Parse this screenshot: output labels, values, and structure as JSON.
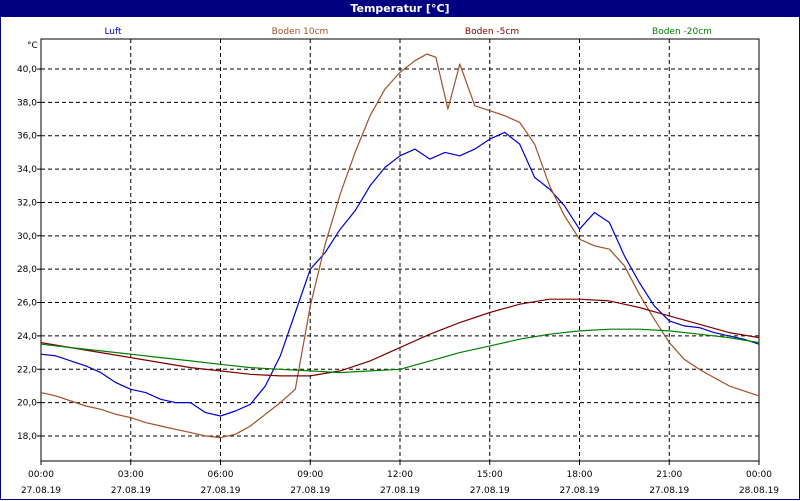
{
  "chart_data": {
    "type": "line",
    "title": "Temperatur [°C]",
    "ylabel": "°C",
    "ylim": [
      16.5,
      41.8
    ],
    "xlim": [
      0,
      24
    ],
    "grid": true,
    "legend_position": "top",
    "y_ticks": [
      "18,0",
      "20,0",
      "22,0",
      "24,0",
      "26,0",
      "28,0",
      "30,0",
      "32,0",
      "34,0",
      "36,0",
      "38,0",
      "40,0"
    ],
    "y_tick_values": [
      18,
      20,
      22,
      24,
      26,
      28,
      30,
      32,
      34,
      36,
      38,
      40
    ],
    "x_ticks": [
      {
        "time": "00:00",
        "date": "27.08.19",
        "hour": 0
      },
      {
        "time": "03:00",
        "date": "27.08.19",
        "hour": 3
      },
      {
        "time": "06:00",
        "date": "27.08.19",
        "hour": 6
      },
      {
        "time": "09:00",
        "date": "27.08.19",
        "hour": 9
      },
      {
        "time": "12:00",
        "date": "27.08.19",
        "hour": 12
      },
      {
        "time": "15:00",
        "date": "27.08.19",
        "hour": 15
      },
      {
        "time": "18:00",
        "date": "27.08.19",
        "hour": 18
      },
      {
        "time": "21:00",
        "date": "27.08.19",
        "hour": 21
      },
      {
        "time": "00:00",
        "date": "28.08.19",
        "hour": 24
      }
    ],
    "series": [
      {
        "name": "Luft",
        "color": "#0000cc",
        "x": [
          0,
          0.5,
          1,
          1.5,
          2,
          2.5,
          3,
          3.5,
          4,
          4.5,
          5,
          5.5,
          6,
          6.5,
          7,
          7.5,
          8,
          8.5,
          9,
          9.5,
          10,
          10.5,
          11,
          11.5,
          12,
          12.5,
          13,
          13.5,
          14,
          14.5,
          15,
          15.5,
          16,
          16.5,
          17,
          17.5,
          18,
          18.5,
          19,
          19.5,
          20,
          20.5,
          21,
          21.5,
          22,
          22.5,
          23,
          23.5,
          24
        ],
        "y": [
          22.9,
          22.8,
          22.5,
          22.2,
          21.8,
          21.2,
          20.8,
          20.6,
          20.2,
          20.0,
          20.0,
          19.4,
          19.2,
          19.5,
          19.9,
          21.0,
          22.8,
          25.4,
          28.0,
          29.0,
          30.4,
          31.5,
          33.0,
          34.1,
          34.8,
          35.2,
          34.6,
          35.0,
          34.8,
          35.2,
          35.8,
          36.2,
          35.5,
          33.5,
          32.8,
          31.8,
          30.4,
          31.4,
          30.8,
          28.8,
          27.2,
          25.8,
          24.9,
          24.6,
          24.5,
          24.2,
          24.0,
          23.8,
          23.5
        ]
      },
      {
        "name": "Boden 10cm",
        "color": "#a05028",
        "x": [
          0,
          0.5,
          1,
          1.5,
          2,
          2.5,
          3,
          3.5,
          4,
          4.5,
          5,
          5.5,
          6,
          6.5,
          7,
          7.5,
          8,
          8.5,
          9,
          9.5,
          10,
          10.5,
          11,
          11.5,
          12,
          12.5,
          12.9,
          13.2,
          13.6,
          14,
          14.5,
          15,
          15.5,
          16,
          16.5,
          17,
          17.5,
          18,
          18.5,
          19,
          19.5,
          20,
          20.5,
          21,
          21.5,
          22,
          22.5,
          23,
          23.5,
          24
        ],
        "y": [
          20.6,
          20.4,
          20.1,
          19.8,
          19.6,
          19.3,
          19.1,
          18.8,
          18.6,
          18.4,
          18.2,
          18.0,
          17.9,
          18.1,
          18.6,
          19.3,
          20.0,
          20.8,
          25.8,
          29.5,
          32.5,
          35.0,
          37.2,
          38.8,
          39.8,
          40.5,
          40.9,
          40.7,
          37.6,
          40.3,
          37.8,
          37.5,
          37.2,
          36.8,
          35.5,
          33.0,
          31.2,
          29.8,
          29.4,
          29.2,
          28.2,
          26.5,
          25.0,
          23.6,
          22.6,
          22.0,
          21.5,
          21.0,
          20.7,
          20.4
        ]
      },
      {
        "name": "Boden -5cm",
        "color": "#800000",
        "x": [
          0,
          1,
          2,
          3,
          4,
          5,
          6,
          7,
          8,
          9,
          10,
          11,
          12,
          13,
          14,
          15,
          16,
          17,
          18,
          19,
          20,
          21,
          22,
          23,
          24
        ],
        "y": [
          23.6,
          23.3,
          23.0,
          22.7,
          22.4,
          22.1,
          21.9,
          21.7,
          21.6,
          21.6,
          21.9,
          22.5,
          23.3,
          24.1,
          24.8,
          25.4,
          25.9,
          26.2,
          26.2,
          26.1,
          25.7,
          25.2,
          24.7,
          24.2,
          23.9
        ]
      },
      {
        "name": "Boden -20cm",
        "color": "#008000",
        "x": [
          0,
          1,
          2,
          3,
          4,
          5,
          6,
          7,
          8,
          9,
          10,
          11,
          12,
          13,
          14,
          15,
          16,
          17,
          18,
          19,
          20,
          21,
          22,
          23,
          24
        ],
        "y": [
          23.5,
          23.3,
          23.1,
          22.9,
          22.7,
          22.5,
          22.3,
          22.1,
          22.0,
          21.9,
          21.8,
          21.9,
          22.0,
          22.5,
          23.0,
          23.4,
          23.8,
          24.1,
          24.3,
          24.4,
          24.4,
          24.3,
          24.1,
          23.9,
          23.6
        ]
      }
    ]
  }
}
